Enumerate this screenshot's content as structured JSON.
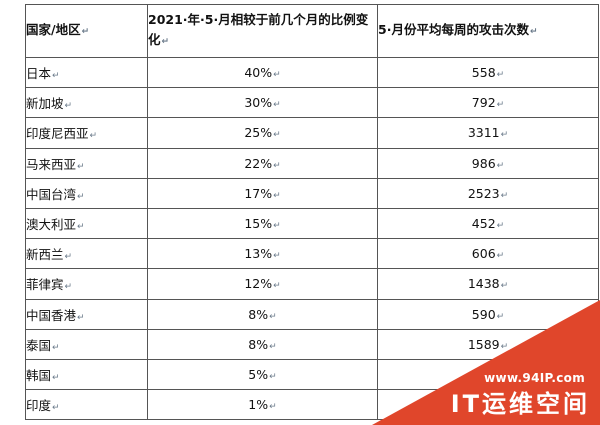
{
  "table": {
    "headers": {
      "col1": "国家/地区",
      "col2": "2021·年·5·月相较于前几个月的比例变化",
      "col3": "5·月份平均每周的攻击次数"
    },
    "rows": [
      {
        "region": "日本",
        "change": "40%",
        "attacks": "558"
      },
      {
        "region": "新加坡",
        "change": "30%",
        "attacks": "792"
      },
      {
        "region": "印度尼西亚",
        "change": "25%",
        "attacks": "3311"
      },
      {
        "region": "马来西亚",
        "change": "22%",
        "attacks": "986"
      },
      {
        "region": "中国台湾",
        "change": "17%",
        "attacks": "2523"
      },
      {
        "region": "澳大利亚",
        "change": "15%",
        "attacks": "452"
      },
      {
        "region": "新西兰",
        "change": "13%",
        "attacks": "606"
      },
      {
        "region": "菲律宾",
        "change": "12%",
        "attacks": "1438"
      },
      {
        "region": "中国香港",
        "change": "8%",
        "attacks": "590"
      },
      {
        "region": "泰国",
        "change": "8%",
        "attacks": "1589"
      },
      {
        "region": "韩国",
        "change": "5%",
        "attacks": ""
      },
      {
        "region": "印度",
        "change": "1%",
        "attacks": ""
      }
    ]
  },
  "watermark": {
    "url": "www.94IP.com",
    "logo": "IT运维空间",
    "color": "#e0462b"
  }
}
